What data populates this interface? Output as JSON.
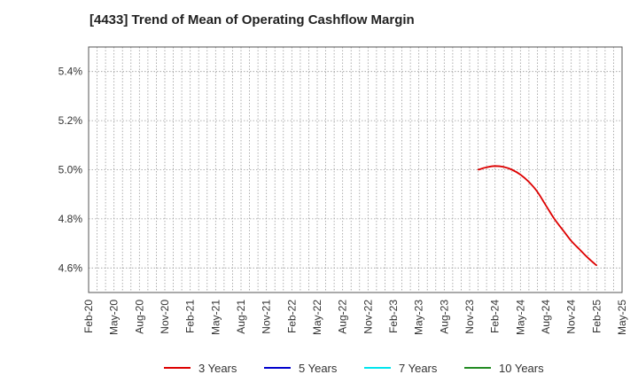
{
  "chart_data": {
    "type": "line",
    "title": "[4433]  Trend of Mean of Operating Cashflow Margin",
    "xlabel": "",
    "ylabel": "",
    "x_ticks": [
      "Feb-20",
      "May-20",
      "Aug-20",
      "Nov-20",
      "Feb-21",
      "May-21",
      "Aug-21",
      "Nov-21",
      "Feb-22",
      "May-22",
      "Aug-22",
      "Nov-22",
      "Feb-23",
      "May-23",
      "Aug-23",
      "Nov-23",
      "Feb-24",
      "May-24",
      "Aug-24",
      "Nov-24",
      "Feb-25",
      "May-25"
    ],
    "y_ticks": [
      "4.6%",
      "4.8%",
      "5.0%",
      "5.2%",
      "5.4%"
    ],
    "ylim": [
      4.5,
      5.5
    ],
    "grid": true,
    "legend_position": "bottom",
    "series": [
      {
        "name": "3 Years",
        "color": "#dd0000",
        "points": [
          {
            "x": "Dec-23",
            "y": 5.0
          },
          {
            "x": "Jan-24",
            "y": 5.01
          },
          {
            "x": "Feb-24",
            "y": 5.015
          },
          {
            "x": "Mar-24",
            "y": 5.012
          },
          {
            "x": "Apr-24",
            "y": 5.0
          },
          {
            "x": "May-24",
            "y": 4.98
          },
          {
            "x": "Jun-24",
            "y": 4.95
          },
          {
            "x": "Jul-24",
            "y": 4.91
          },
          {
            "x": "Aug-24",
            "y": 4.855
          },
          {
            "x": "Sep-24",
            "y": 4.8
          },
          {
            "x": "Oct-24",
            "y": 4.755
          },
          {
            "x": "Nov-24",
            "y": 4.71
          },
          {
            "x": "Dec-24",
            "y": 4.675
          },
          {
            "x": "Jan-25",
            "y": 4.64
          },
          {
            "x": "Feb-25",
            "y": 4.61
          }
        ]
      },
      {
        "name": "5 Years",
        "color": "#0000cc",
        "points": []
      },
      {
        "name": "7 Years",
        "color": "#00e5ee",
        "points": []
      },
      {
        "name": "10 Years",
        "color": "#228b22",
        "points": []
      }
    ]
  }
}
